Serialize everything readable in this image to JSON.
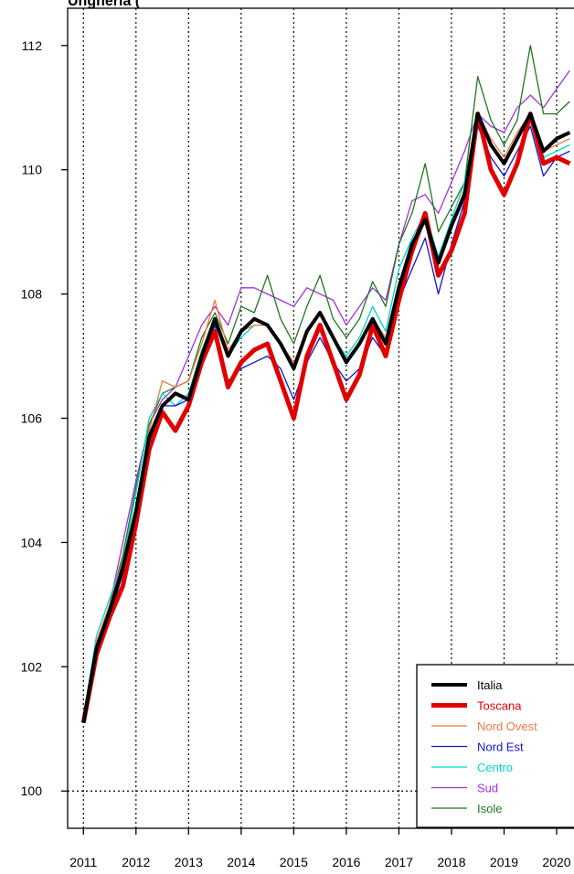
{
  "title": "Ungheria (",
  "chart_data": {
    "type": "line",
    "title": "Ungheria (",
    "xlabel": "",
    "ylabel": "",
    "x_ticks": [
      "2011",
      "2012",
      "2013",
      "2014",
      "2015",
      "2016",
      "2017",
      "2018",
      "2019",
      "2020"
    ],
    "y_ticks": [
      100,
      102,
      104,
      106,
      108,
      110,
      112
    ],
    "xlim": [
      2010.7,
      2020.33
    ],
    "ylim": [
      99.4,
      112.6
    ],
    "grid": "dotted-vertical-at-years",
    "legend_position": "bottom-right",
    "series": [
      {
        "name": "Italia",
        "color": "#000000",
        "width": 4,
        "points": [
          [
            2011.0,
            101.1
          ],
          [
            2011.25,
            102.3
          ],
          [
            2011.5,
            102.9
          ],
          [
            2011.75,
            103.6
          ],
          [
            2012.0,
            104.5
          ],
          [
            2012.25,
            105.7
          ],
          [
            2012.5,
            106.2
          ],
          [
            2012.75,
            106.4
          ],
          [
            2013.0,
            106.3
          ],
          [
            2013.25,
            107.0
          ],
          [
            2013.5,
            107.6
          ],
          [
            2013.75,
            107.0
          ],
          [
            2014.0,
            107.4
          ],
          [
            2014.25,
            107.6
          ],
          [
            2014.5,
            107.5
          ],
          [
            2014.75,
            107.2
          ],
          [
            2015.0,
            106.8
          ],
          [
            2015.25,
            107.4
          ],
          [
            2015.5,
            107.7
          ],
          [
            2015.75,
            107.3
          ],
          [
            2016.0,
            106.9
          ],
          [
            2016.25,
            107.2
          ],
          [
            2016.5,
            107.6
          ],
          [
            2016.75,
            107.2
          ],
          [
            2017.0,
            108.1
          ],
          [
            2017.25,
            108.8
          ],
          [
            2017.5,
            109.2
          ],
          [
            2017.75,
            108.5
          ],
          [
            2018.0,
            109.1
          ],
          [
            2018.25,
            109.6
          ],
          [
            2018.5,
            110.9
          ],
          [
            2018.75,
            110.4
          ],
          [
            2019.0,
            110.1
          ],
          [
            2019.25,
            110.5
          ],
          [
            2019.5,
            110.9
          ],
          [
            2019.75,
            110.3
          ],
          [
            2020.0,
            110.5
          ],
          [
            2020.25,
            110.6
          ]
        ]
      },
      {
        "name": "Toscana",
        "color": "#e00000",
        "width": 5,
        "points": [
          [
            2011.0,
            101.1
          ],
          [
            2011.25,
            102.2
          ],
          [
            2011.5,
            102.8
          ],
          [
            2011.75,
            103.3
          ],
          [
            2012.0,
            104.3
          ],
          [
            2012.25,
            105.5
          ],
          [
            2012.5,
            106.1
          ],
          [
            2012.75,
            105.8
          ],
          [
            2013.0,
            106.2
          ],
          [
            2013.25,
            106.9
          ],
          [
            2013.5,
            107.4
          ],
          [
            2013.75,
            106.5
          ],
          [
            2014.0,
            106.9
          ],
          [
            2014.25,
            107.1
          ],
          [
            2014.5,
            107.2
          ],
          [
            2014.75,
            106.6
          ],
          [
            2015.0,
            106.0
          ],
          [
            2015.25,
            107.0
          ],
          [
            2015.5,
            107.5
          ],
          [
            2015.75,
            106.9
          ],
          [
            2016.0,
            106.3
          ],
          [
            2016.25,
            106.7
          ],
          [
            2016.5,
            107.5
          ],
          [
            2016.75,
            107.0
          ],
          [
            2017.0,
            107.9
          ],
          [
            2017.25,
            108.7
          ],
          [
            2017.5,
            109.3
          ],
          [
            2017.75,
            108.3
          ],
          [
            2018.0,
            108.7
          ],
          [
            2018.25,
            109.3
          ],
          [
            2018.5,
            110.9
          ],
          [
            2018.75,
            110.0
          ],
          [
            2019.0,
            109.6
          ],
          [
            2019.25,
            110.1
          ],
          [
            2019.5,
            110.9
          ],
          [
            2019.75,
            110.1
          ],
          [
            2020.0,
            110.2
          ],
          [
            2020.25,
            110.1
          ]
        ]
      },
      {
        "name": "Nord Ovest",
        "color": "#ec7a40",
        "width": 1.3,
        "points": [
          [
            2011.0,
            101.1
          ],
          [
            2011.25,
            102.4
          ],
          [
            2011.5,
            103.0
          ],
          [
            2011.75,
            103.7
          ],
          [
            2012.0,
            104.6
          ],
          [
            2012.25,
            105.8
          ],
          [
            2012.5,
            106.6
          ],
          [
            2012.75,
            106.5
          ],
          [
            2013.0,
            106.6
          ],
          [
            2013.25,
            107.2
          ],
          [
            2013.5,
            107.9
          ],
          [
            2013.75,
            107.1
          ],
          [
            2014.0,
            107.4
          ],
          [
            2014.25,
            107.5
          ],
          [
            2014.5,
            107.5
          ],
          [
            2014.75,
            107.2
          ],
          [
            2015.0,
            106.9
          ],
          [
            2015.25,
            107.4
          ],
          [
            2015.5,
            107.7
          ],
          [
            2015.75,
            107.3
          ],
          [
            2016.0,
            106.9
          ],
          [
            2016.25,
            107.2
          ],
          [
            2016.5,
            107.6
          ],
          [
            2016.75,
            107.3
          ],
          [
            2017.0,
            108.2
          ],
          [
            2017.25,
            108.6
          ],
          [
            2017.5,
            109.2
          ],
          [
            2017.75,
            108.5
          ],
          [
            2018.0,
            109.1
          ],
          [
            2018.25,
            109.7
          ],
          [
            2018.5,
            110.9
          ],
          [
            2018.75,
            110.5
          ],
          [
            2019.0,
            110.2
          ],
          [
            2019.25,
            110.6
          ],
          [
            2019.5,
            110.9
          ],
          [
            2019.75,
            110.3
          ],
          [
            2020.0,
            110.4
          ],
          [
            2020.25,
            110.5
          ]
        ]
      },
      {
        "name": "Nord Est",
        "color": "#1414c8",
        "width": 1.3,
        "points": [
          [
            2011.0,
            101.1
          ],
          [
            2011.25,
            102.2
          ],
          [
            2011.5,
            102.8
          ],
          [
            2011.75,
            103.5
          ],
          [
            2012.0,
            104.4
          ],
          [
            2012.25,
            105.6
          ],
          [
            2012.5,
            106.2
          ],
          [
            2012.75,
            106.2
          ],
          [
            2013.0,
            106.3
          ],
          [
            2013.25,
            106.9
          ],
          [
            2013.5,
            107.5
          ],
          [
            2013.75,
            106.6
          ],
          [
            2014.0,
            106.8
          ],
          [
            2014.25,
            106.9
          ],
          [
            2014.5,
            107.0
          ],
          [
            2014.75,
            106.8
          ],
          [
            2015.0,
            106.3
          ],
          [
            2015.25,
            106.9
          ],
          [
            2015.5,
            107.3
          ],
          [
            2015.75,
            106.9
          ],
          [
            2016.0,
            106.6
          ],
          [
            2016.25,
            106.8
          ],
          [
            2016.5,
            107.3
          ],
          [
            2016.75,
            107.0
          ],
          [
            2017.0,
            107.9
          ],
          [
            2017.25,
            108.4
          ],
          [
            2017.5,
            108.9
          ],
          [
            2017.75,
            108.0
          ],
          [
            2018.0,
            108.8
          ],
          [
            2018.25,
            109.5
          ],
          [
            2018.5,
            110.7
          ],
          [
            2018.75,
            110.2
          ],
          [
            2019.0,
            109.9
          ],
          [
            2019.25,
            110.3
          ],
          [
            2019.5,
            110.7
          ],
          [
            2019.75,
            109.9
          ],
          [
            2020.0,
            110.2
          ],
          [
            2020.25,
            110.3
          ]
        ]
      },
      {
        "name": "Centro",
        "color": "#00d2d2",
        "width": 1.3,
        "points": [
          [
            2011.0,
            101.2
          ],
          [
            2011.25,
            102.5
          ],
          [
            2011.5,
            103.1
          ],
          [
            2011.75,
            103.7
          ],
          [
            2012.0,
            104.8
          ],
          [
            2012.25,
            106.0
          ],
          [
            2012.5,
            106.4
          ],
          [
            2012.75,
            106.2
          ],
          [
            2013.0,
            106.4
          ],
          [
            2013.25,
            107.1
          ],
          [
            2013.5,
            107.6
          ],
          [
            2013.75,
            107.0
          ],
          [
            2014.0,
            107.3
          ],
          [
            2014.25,
            107.5
          ],
          [
            2014.5,
            107.5
          ],
          [
            2014.75,
            107.2
          ],
          [
            2015.0,
            106.8
          ],
          [
            2015.25,
            107.4
          ],
          [
            2015.5,
            107.7
          ],
          [
            2015.75,
            107.3
          ],
          [
            2016.0,
            107.0
          ],
          [
            2016.25,
            107.3
          ],
          [
            2016.5,
            107.8
          ],
          [
            2016.75,
            107.4
          ],
          [
            2017.0,
            108.4
          ],
          [
            2017.25,
            108.9
          ],
          [
            2017.5,
            109.3
          ],
          [
            2017.75,
            108.6
          ],
          [
            2018.0,
            109.2
          ],
          [
            2018.25,
            109.8
          ],
          [
            2018.5,
            110.9
          ],
          [
            2018.75,
            110.4
          ],
          [
            2019.0,
            110.1
          ],
          [
            2019.25,
            110.5
          ],
          [
            2019.5,
            110.8
          ],
          [
            2019.75,
            110.2
          ],
          [
            2020.0,
            110.3
          ],
          [
            2020.25,
            110.4
          ]
        ]
      },
      {
        "name": "Sud",
        "color": "#a032dc",
        "width": 1.3,
        "points": [
          [
            2011.0,
            101.1
          ],
          [
            2011.25,
            102.4
          ],
          [
            2011.5,
            103.0
          ],
          [
            2011.75,
            104.0
          ],
          [
            2012.0,
            105.0
          ],
          [
            2012.25,
            105.9
          ],
          [
            2012.5,
            106.3
          ],
          [
            2012.75,
            106.5
          ],
          [
            2013.0,
            107.0
          ],
          [
            2013.25,
            107.5
          ],
          [
            2013.5,
            107.8
          ],
          [
            2013.75,
            107.5
          ],
          [
            2014.0,
            108.1
          ],
          [
            2014.25,
            108.1
          ],
          [
            2014.5,
            108.0
          ],
          [
            2014.75,
            107.9
          ],
          [
            2015.0,
            107.8
          ],
          [
            2015.25,
            108.1
          ],
          [
            2015.5,
            108.0
          ],
          [
            2015.75,
            107.9
          ],
          [
            2016.0,
            107.5
          ],
          [
            2016.25,
            107.8
          ],
          [
            2016.5,
            108.1
          ],
          [
            2016.75,
            107.9
          ],
          [
            2017.0,
            108.8
          ],
          [
            2017.25,
            109.5
          ],
          [
            2017.5,
            109.6
          ],
          [
            2017.75,
            109.3
          ],
          [
            2018.0,
            109.8
          ],
          [
            2018.25,
            110.3
          ],
          [
            2018.5,
            110.9
          ],
          [
            2018.75,
            110.7
          ],
          [
            2019.0,
            110.6
          ],
          [
            2019.25,
            111.0
          ],
          [
            2019.5,
            111.2
          ],
          [
            2019.75,
            111.0
          ],
          [
            2020.0,
            111.3
          ],
          [
            2020.25,
            111.6
          ]
        ]
      },
      {
        "name": "Isole",
        "color": "#1e781e",
        "width": 1.3,
        "points": [
          [
            2011.0,
            101.1
          ],
          [
            2011.25,
            102.3
          ],
          [
            2011.5,
            103.0
          ],
          [
            2011.75,
            103.8
          ],
          [
            2012.0,
            104.9
          ],
          [
            2012.25,
            105.9
          ],
          [
            2012.5,
            106.4
          ],
          [
            2012.75,
            106.5
          ],
          [
            2013.0,
            106.6
          ],
          [
            2013.25,
            107.3
          ],
          [
            2013.5,
            107.7
          ],
          [
            2013.75,
            107.2
          ],
          [
            2014.0,
            107.8
          ],
          [
            2014.25,
            107.7
          ],
          [
            2014.5,
            108.3
          ],
          [
            2014.75,
            107.6
          ],
          [
            2015.0,
            107.2
          ],
          [
            2015.25,
            107.8
          ],
          [
            2015.5,
            108.3
          ],
          [
            2015.75,
            107.6
          ],
          [
            2016.0,
            107.3
          ],
          [
            2016.25,
            107.6
          ],
          [
            2016.5,
            108.2
          ],
          [
            2016.75,
            107.8
          ],
          [
            2017.0,
            108.8
          ],
          [
            2017.25,
            109.3
          ],
          [
            2017.5,
            110.1
          ],
          [
            2017.75,
            109.0
          ],
          [
            2018.0,
            109.4
          ],
          [
            2018.25,
            109.8
          ],
          [
            2018.5,
            111.5
          ],
          [
            2018.75,
            110.8
          ],
          [
            2019.0,
            110.4
          ],
          [
            2019.25,
            110.8
          ],
          [
            2019.5,
            112.0
          ],
          [
            2019.75,
            110.9
          ],
          [
            2020.0,
            110.9
          ],
          [
            2020.25,
            111.1
          ]
        ]
      }
    ]
  }
}
